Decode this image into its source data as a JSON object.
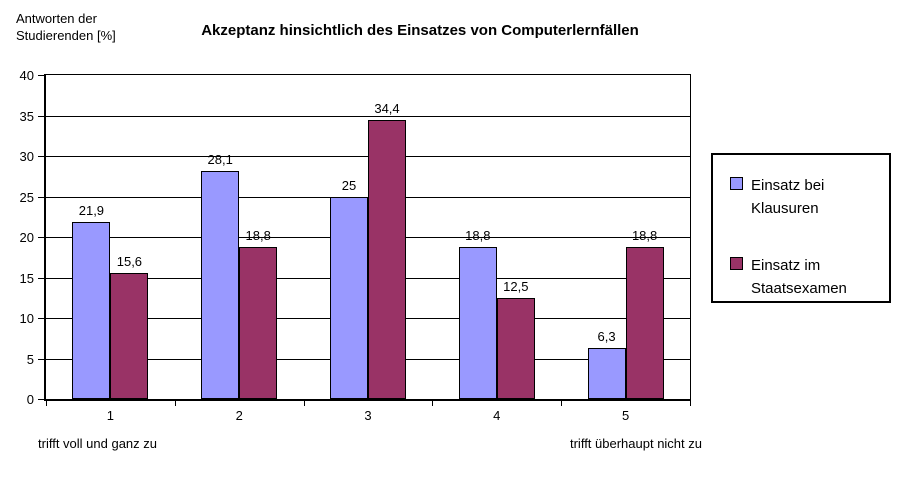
{
  "header": {
    "y_axis_title_line1": "Antworten der",
    "y_axis_title_line2": "Studierenden [%]",
    "title": "Akzeptanz hinsichtlich des Einsatzes von Computerlernfällen"
  },
  "chart_data": {
    "type": "bar",
    "title": "Akzeptanz hinsichtlich des Einsatzes von Computerlernfällen",
    "ylabel": "Antworten der Studierenden [%]",
    "xlabel": "",
    "categories": [
      "1",
      "2",
      "3",
      "4",
      "5"
    ],
    "series": [
      {
        "name": "Einsatz bei Klausuren",
        "color": "#9999FF",
        "values": [
          21.9,
          28.1,
          25,
          18.8,
          6.3
        ],
        "value_labels": [
          "21,9",
          "28,1",
          "25",
          "18,8",
          "6,3"
        ]
      },
      {
        "name": "Einsatz im Staatsexamen",
        "color": "#993366",
        "values": [
          15.6,
          18.8,
          34.4,
          12.5,
          18.8
        ],
        "value_labels": [
          "15,6",
          "18,8",
          "34,4",
          "12,5",
          "18,8"
        ]
      }
    ],
    "ylim": [
      0,
      40
    ],
    "yticks": [
      0,
      5,
      10,
      15,
      20,
      25,
      30,
      35,
      40
    ],
    "grid": true,
    "legend_position": "right",
    "x_annotation_left": "trifft voll und ganz zu",
    "x_annotation_right": "trifft überhaupt nicht zu"
  },
  "legend": {
    "items": [
      {
        "label": "Einsatz bei Klausuren",
        "color": "#9999FF"
      },
      {
        "label": "Einsatz im Staatsexamen",
        "color": "#993366"
      }
    ]
  }
}
